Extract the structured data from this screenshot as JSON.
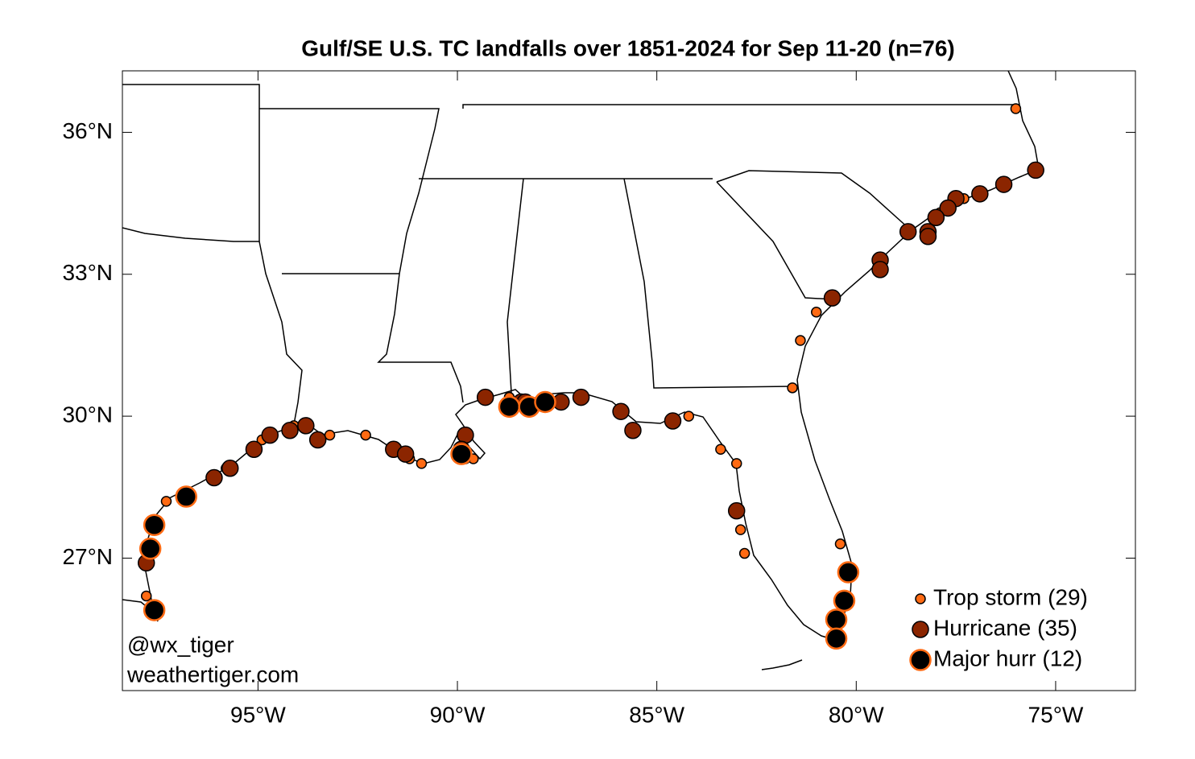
{
  "chart_data": {
    "type": "scatter",
    "title": "Gulf/SE U.S. TC landfalls over 1851-2024 for Sep 11-20 (n=76)",
    "annotations": [
      "@wx_tiger",
      "weathertiger.com"
    ],
    "xlim": [
      -98.4,
      -73.0
    ],
    "ylim": [
      24.2,
      37.3
    ],
    "xticks": [
      {
        "value": -95,
        "label": "95°W"
      },
      {
        "value": -90,
        "label": "90°W"
      },
      {
        "value": -85,
        "label": "85°W"
      },
      {
        "value": -80,
        "label": "80°W"
      },
      {
        "value": -75,
        "label": "75°W"
      }
    ],
    "yticks": [
      {
        "value": 27,
        "label": "27°N"
      },
      {
        "value": 30,
        "label": "30°N"
      },
      {
        "value": 33,
        "label": "33°N"
      },
      {
        "value": 36,
        "label": "36°N"
      }
    ],
    "grid": false,
    "legend": "lower right",
    "series": [
      {
        "name": "Trop storm (29)",
        "color": "#ff6a13",
        "edgecolor": "#000000",
        "x": [
          -76.0,
          -77.3,
          -77.7,
          -77.9,
          -78.0,
          -81.0,
          -81.4,
          -81.6,
          -84.2,
          -83.4,
          -83.0,
          -82.9,
          -82.8,
          -80.4,
          -88.7,
          -86.9,
          -88.0,
          -89.6,
          -89.8,
          -90.9,
          -91.2,
          -92.3,
          -93.2,
          -94.1,
          -94.7,
          -94.9,
          -95.8,
          -97.3,
          -97.8
        ],
        "y": [
          36.5,
          34.6,
          34.4,
          34.3,
          34.2,
          32.2,
          31.6,
          30.6,
          30.0,
          29.3,
          29.0,
          27.6,
          27.1,
          27.3,
          30.4,
          30.4,
          30.3,
          29.1,
          29.1,
          29.0,
          29.1,
          29.6,
          29.6,
          29.8,
          29.6,
          29.5,
          28.9,
          28.2,
          26.2
        ]
      },
      {
        "name": "Hurricane (35)",
        "color": "#8b2500",
        "edgecolor": "#000000",
        "x": [
          -75.5,
          -76.3,
          -76.9,
          -77.5,
          -77.7,
          -78.0,
          -78.2,
          -78.2,
          -78.7,
          -79.4,
          -79.4,
          -80.6,
          -89.3,
          -88.4,
          -87.4,
          -86.9,
          -85.9,
          -85.6,
          -84.6,
          -83.0,
          -89.8,
          -89.9,
          -93.8,
          -94.2,
          -93.5,
          -94.7,
          -95.1,
          -95.7,
          -96.1,
          -91.6,
          -91.3,
          -97.8,
          -80.3,
          -88.7,
          -88.3
        ],
        "y": [
          35.2,
          34.9,
          34.7,
          34.6,
          34.4,
          34.2,
          33.9,
          33.8,
          33.9,
          33.3,
          33.1,
          32.5,
          30.4,
          30.3,
          30.3,
          30.4,
          30.1,
          29.7,
          29.9,
          28.0,
          29.6,
          29.3,
          29.8,
          29.7,
          29.5,
          29.6,
          29.3,
          28.9,
          28.7,
          29.3,
          29.2,
          26.9,
          26.1,
          30.2,
          30.3
        ]
      },
      {
        "name": "Major hurr (12)",
        "color": "#000000",
        "edgecolor": "#ff6a13",
        "x": [
          -80.2,
          -80.3,
          -80.5,
          -80.5,
          -88.7,
          -88.2,
          -87.8,
          -89.9,
          -96.8,
          -97.6,
          -97.7,
          -97.6
        ],
        "y": [
          26.7,
          26.1,
          25.7,
          25.3,
          30.2,
          30.2,
          30.3,
          29.2,
          28.3,
          27.7,
          27.2,
          25.9
        ]
      }
    ]
  }
}
